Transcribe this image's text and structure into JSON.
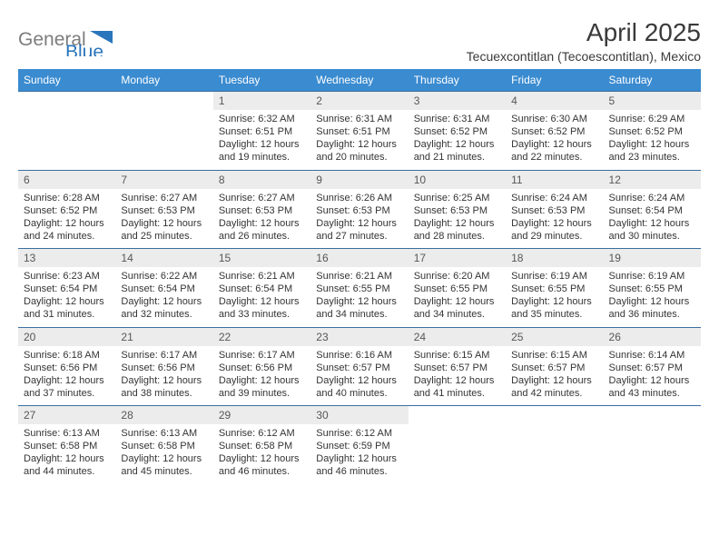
{
  "logo": {
    "text_general": "General",
    "text_blue": "Blue"
  },
  "title": "April 2025",
  "subtitle": "Tecuexcontitlan (Tecoescontitlan), Mexico",
  "colors": {
    "header_bg": "#3a8bd0",
    "header_text": "#ffffff",
    "daynum_bg": "#ececec",
    "border": "#3a6fa0",
    "page_bg": "#ffffff",
    "body_text": "#343434",
    "logo_gray": "#7d7d7d",
    "logo_blue": "#2a75bb"
  },
  "typography": {
    "title_size_pt": 21,
    "subtitle_size_pt": 11,
    "dayhead_size_pt": 9,
    "body_size_pt": 8
  },
  "columns": [
    "Sunday",
    "Monday",
    "Tuesday",
    "Wednesday",
    "Thursday",
    "Friday",
    "Saturday"
  ],
  "weeks": [
    [
      null,
      null,
      {
        "n": "1",
        "sr": "6:32 AM",
        "ss": "6:51 PM",
        "dl": "12 hours and 19 minutes."
      },
      {
        "n": "2",
        "sr": "6:31 AM",
        "ss": "6:51 PM",
        "dl": "12 hours and 20 minutes."
      },
      {
        "n": "3",
        "sr": "6:31 AM",
        "ss": "6:52 PM",
        "dl": "12 hours and 21 minutes."
      },
      {
        "n": "4",
        "sr": "6:30 AM",
        "ss": "6:52 PM",
        "dl": "12 hours and 22 minutes."
      },
      {
        "n": "5",
        "sr": "6:29 AM",
        "ss": "6:52 PM",
        "dl": "12 hours and 23 minutes."
      }
    ],
    [
      {
        "n": "6",
        "sr": "6:28 AM",
        "ss": "6:52 PM",
        "dl": "12 hours and 24 minutes."
      },
      {
        "n": "7",
        "sr": "6:27 AM",
        "ss": "6:53 PM",
        "dl": "12 hours and 25 minutes."
      },
      {
        "n": "8",
        "sr": "6:27 AM",
        "ss": "6:53 PM",
        "dl": "12 hours and 26 minutes."
      },
      {
        "n": "9",
        "sr": "6:26 AM",
        "ss": "6:53 PM",
        "dl": "12 hours and 27 minutes."
      },
      {
        "n": "10",
        "sr": "6:25 AM",
        "ss": "6:53 PM",
        "dl": "12 hours and 28 minutes."
      },
      {
        "n": "11",
        "sr": "6:24 AM",
        "ss": "6:53 PM",
        "dl": "12 hours and 29 minutes."
      },
      {
        "n": "12",
        "sr": "6:24 AM",
        "ss": "6:54 PM",
        "dl": "12 hours and 30 minutes."
      }
    ],
    [
      {
        "n": "13",
        "sr": "6:23 AM",
        "ss": "6:54 PM",
        "dl": "12 hours and 31 minutes."
      },
      {
        "n": "14",
        "sr": "6:22 AM",
        "ss": "6:54 PM",
        "dl": "12 hours and 32 minutes."
      },
      {
        "n": "15",
        "sr": "6:21 AM",
        "ss": "6:54 PM",
        "dl": "12 hours and 33 minutes."
      },
      {
        "n": "16",
        "sr": "6:21 AM",
        "ss": "6:55 PM",
        "dl": "12 hours and 34 minutes."
      },
      {
        "n": "17",
        "sr": "6:20 AM",
        "ss": "6:55 PM",
        "dl": "12 hours and 34 minutes."
      },
      {
        "n": "18",
        "sr": "6:19 AM",
        "ss": "6:55 PM",
        "dl": "12 hours and 35 minutes."
      },
      {
        "n": "19",
        "sr": "6:19 AM",
        "ss": "6:55 PM",
        "dl": "12 hours and 36 minutes."
      }
    ],
    [
      {
        "n": "20",
        "sr": "6:18 AM",
        "ss": "6:56 PM",
        "dl": "12 hours and 37 minutes."
      },
      {
        "n": "21",
        "sr": "6:17 AM",
        "ss": "6:56 PM",
        "dl": "12 hours and 38 minutes."
      },
      {
        "n": "22",
        "sr": "6:17 AM",
        "ss": "6:56 PM",
        "dl": "12 hours and 39 minutes."
      },
      {
        "n": "23",
        "sr": "6:16 AM",
        "ss": "6:57 PM",
        "dl": "12 hours and 40 minutes."
      },
      {
        "n": "24",
        "sr": "6:15 AM",
        "ss": "6:57 PM",
        "dl": "12 hours and 41 minutes."
      },
      {
        "n": "25",
        "sr": "6:15 AM",
        "ss": "6:57 PM",
        "dl": "12 hours and 42 minutes."
      },
      {
        "n": "26",
        "sr": "6:14 AM",
        "ss": "6:57 PM",
        "dl": "12 hours and 43 minutes."
      }
    ],
    [
      {
        "n": "27",
        "sr": "6:13 AM",
        "ss": "6:58 PM",
        "dl": "12 hours and 44 minutes."
      },
      {
        "n": "28",
        "sr": "6:13 AM",
        "ss": "6:58 PM",
        "dl": "12 hours and 45 minutes."
      },
      {
        "n": "29",
        "sr": "6:12 AM",
        "ss": "6:58 PM",
        "dl": "12 hours and 46 minutes."
      },
      {
        "n": "30",
        "sr": "6:12 AM",
        "ss": "6:59 PM",
        "dl": "12 hours and 46 minutes."
      },
      null,
      null,
      null
    ]
  ],
  "labels": {
    "sunrise": "Sunrise:",
    "sunset": "Sunset:",
    "daylight": "Daylight:"
  }
}
